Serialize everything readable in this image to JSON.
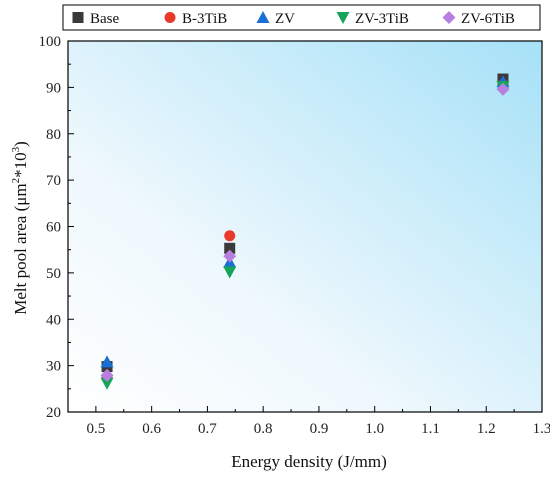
{
  "chart_data": {
    "type": "scatter",
    "title": "",
    "xlabel": "Energy density (J/mm)",
    "ylabel_parts": [
      "Melt pool area (μm",
      "2",
      "*10",
      "3",
      ")"
    ],
    "xlim": [
      0.45,
      1.3
    ],
    "ylim": [
      20,
      100
    ],
    "xticks": [
      "0.5",
      "0.6",
      "0.7",
      "0.8",
      "0.9",
      "1.0",
      "1.1",
      "1.2",
      "1.3"
    ],
    "yticks": [
      "20",
      "30",
      "40",
      "50",
      "60",
      "70",
      "80",
      "90",
      "100"
    ],
    "x_categories": [
      0.52,
      0.74,
      1.23
    ],
    "series": [
      {
        "name": "Base",
        "marker": "square",
        "color": "#3a3a3a",
        "x": [
          0.52,
          0.74,
          1.23
        ],
        "y": [
          29.8,
          55.3,
          91.8
        ]
      },
      {
        "name": "B-3TiB",
        "marker": "circle",
        "color": "#e8392a",
        "x": [
          0.52,
          0.74,
          1.23
        ],
        "y": [
          27.6,
          58.0,
          90.6
        ]
      },
      {
        "name": "ZV",
        "marker": "triangle-up",
        "color": "#1a6fd6",
        "x": [
          0.52,
          0.74,
          1.23
        ],
        "y": [
          30.8,
          52.3,
          91.2
        ]
      },
      {
        "name": "ZV-3TiB",
        "marker": "triangle-down",
        "color": "#16a45a",
        "x": [
          0.52,
          0.74,
          1.23
        ],
        "y": [
          26.2,
          50.2,
          90.2
        ]
      },
      {
        "name": "ZV-6TiB",
        "marker": "diamond",
        "color": "#b97fe0",
        "x": [
          0.52,
          0.74,
          1.23
        ],
        "y": [
          27.9,
          53.6,
          89.6
        ]
      }
    ],
    "legend_position": "top",
    "grid": false,
    "background": "gradient white to light blue"
  }
}
